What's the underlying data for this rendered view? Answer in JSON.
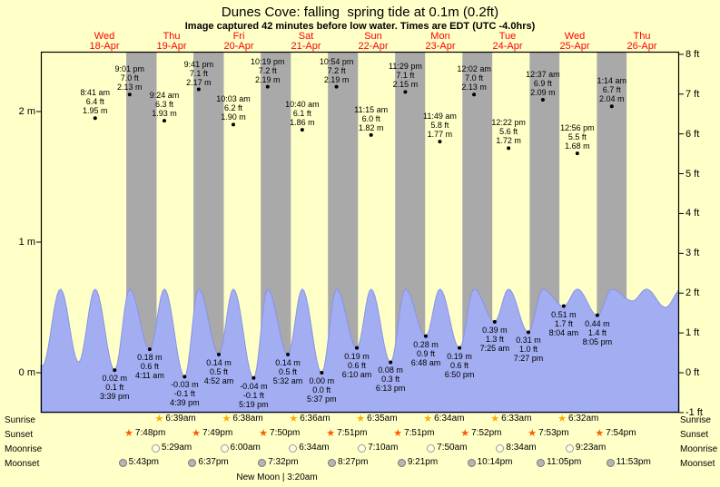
{
  "header": {
    "title": "Dunes Cove: falling  spring tide at 0.1m (0.2ft)",
    "subtitle": "Image captured 42 minutes before low water. Times are EDT (UTC -4.0hrs)"
  },
  "colors": {
    "background": "#ffffc8",
    "night_band": "#a9a9a9",
    "tide_fill": "#a3adf2",
    "tide_stroke": "#8793e8",
    "day_label": "#ff0000",
    "sunrise_star": "#ffaa00",
    "sunset_star": "#ff5a00",
    "moonrise_fill": "#ffffe2",
    "moonset_fill": "#b5b5b5"
  },
  "chart_data": {
    "type": "area",
    "description": "Tide height curve with day/night shading; high tides annotated above curve, low tides below",
    "y_axis_left": {
      "unit": "m",
      "labels": [
        "2 m",
        "1 m",
        "0 m"
      ],
      "values": [
        2,
        1,
        0
      ]
    },
    "y_axis_right": {
      "unit": "ft",
      "labels": [
        "8 ft",
        "7 ft",
        "6 ft",
        "5 ft",
        "4 ft",
        "3 ft",
        "2 ft",
        "1 ft",
        "0 ft",
        "-1 ft"
      ],
      "values": [
        8,
        7,
        6,
        5,
        4,
        3,
        2,
        1,
        0,
        -1
      ]
    },
    "days": [
      {
        "day": 18,
        "dow": "Wed",
        "date": "18-Apr"
      },
      {
        "day": 19,
        "dow": "Thu",
        "date": "19-Apr"
      },
      {
        "day": 20,
        "dow": "Fri",
        "date": "20-Apr"
      },
      {
        "day": 21,
        "dow": "Sat",
        "date": "21-Apr"
      },
      {
        "day": 22,
        "dow": "Sun",
        "date": "22-Apr"
      },
      {
        "day": 23,
        "dow": "Mon",
        "date": "23-Apr"
      },
      {
        "day": 24,
        "dow": "Tue",
        "date": "24-Apr"
      },
      {
        "day": 25,
        "dow": "Wed",
        "date": "25-Apr"
      },
      {
        "day": 26,
        "dow": "Thu",
        "date": "26-Apr"
      }
    ],
    "high_tides": [
      {
        "day": 18,
        "time": "8:41 am",
        "ft": "6.4 ft",
        "m": "1.95 m"
      },
      {
        "day": 18,
        "time": "9:01 pm",
        "ft": "7.0 ft",
        "m": "2.13 m"
      },
      {
        "day": 19,
        "time": "9:24 am",
        "ft": "6.3 ft",
        "m": "1.93 m"
      },
      {
        "day": 19,
        "time": "9:41 pm",
        "ft": "7.1 ft",
        "m": "2.17 m"
      },
      {
        "day": 20,
        "time": "10:03 am",
        "ft": "6.2 ft",
        "m": "1.90 m"
      },
      {
        "day": 20,
        "time": "10:19 pm",
        "ft": "7.2 ft",
        "m": "2.19 m"
      },
      {
        "day": 21,
        "time": "10:40 am",
        "ft": "6.1 ft",
        "m": "1.86 m"
      },
      {
        "day": 21,
        "time": "10:54 pm",
        "ft": "7.2 ft",
        "m": "2.19 m"
      },
      {
        "day": 22,
        "time": "11:15 am",
        "ft": "6.0 ft",
        "m": "1.82 m"
      },
      {
        "day": 22,
        "time": "11:29 pm",
        "ft": "7.1 ft",
        "m": "2.15 m"
      },
      {
        "day": 23,
        "time": "11:49 am",
        "ft": "5.8 ft",
        "m": "1.77 m"
      },
      {
        "day": 24,
        "time": "12:02 am",
        "ft": "7.0 ft",
        "m": "2.13 m"
      },
      {
        "day": 24,
        "time": "12:22 pm",
        "ft": "5.6 ft",
        "m": "1.72 m"
      },
      {
        "day": 25,
        "time": "12:37 am",
        "ft": "6.9 ft",
        "m": "2.09 m"
      },
      {
        "day": 25,
        "time": "12:56 pm",
        "ft": "5.5 ft",
        "m": "1.68 m"
      },
      {
        "day": 26,
        "time": "1:14 am",
        "ft": "6.7 ft",
        "m": "2.04 m"
      }
    ],
    "low_tides": [
      {
        "day": 18,
        "time": "3:39 pm",
        "m": "0.02 m",
        "ft": "0.1 ft"
      },
      {
        "day": 19,
        "time": "4:11 am",
        "m": "0.18 m",
        "ft": "0.6 ft"
      },
      {
        "day": 19,
        "time": "4:39 pm",
        "m": "-0.03 m",
        "ft": "-0.1 ft"
      },
      {
        "day": 20,
        "time": "4:52 am",
        "m": "0.14 m",
        "ft": "0.5 ft"
      },
      {
        "day": 20,
        "time": "5:19 pm",
        "m": "-0.04 m",
        "ft": "-0.1 ft"
      },
      {
        "day": 21,
        "time": "5:32 am",
        "m": "0.14 m",
        "ft": "0.5 ft"
      },
      {
        "day": 21,
        "time": "5:37 pm",
        "m": "0.00 m",
        "ft": "0.0 ft"
      },
      {
        "day": 22,
        "time": "6:10 am",
        "m": "0.19 m",
        "ft": "0.6 ft"
      },
      {
        "day": 22,
        "time": "6:13 pm",
        "m": "0.08 m",
        "ft": "0.3 ft"
      },
      {
        "day": 23,
        "time": "6:48 am",
        "m": "0.28 m",
        "ft": "0.9 ft"
      },
      {
        "day": 23,
        "time": "6:50 pm",
        "m": "0.19 m",
        "ft": "0.6 ft"
      },
      {
        "day": 24,
        "time": "7:25 am",
        "m": "0.39 m",
        "ft": "1.3 ft"
      },
      {
        "day": 24,
        "time": "7:27 pm",
        "m": "0.31 m",
        "ft": "1.0 ft"
      },
      {
        "day": 25,
        "time": "8:04 am",
        "m": "0.51 m",
        "ft": "1.7 ft"
      },
      {
        "day": 25,
        "time": "8:05 pm",
        "m": "0.44 m",
        "ft": "1.4 ft"
      }
    ]
  },
  "almanac": {
    "rows": [
      {
        "label": "Sunrise",
        "icon": "sunrise-star",
        "entries": [
          {
            "day": 19,
            "time": "6:39am"
          },
          {
            "day": 20,
            "time": "6:38am"
          },
          {
            "day": 21,
            "time": "6:36am"
          },
          {
            "day": 22,
            "time": "6:35am"
          },
          {
            "day": 23,
            "time": "6:34am"
          },
          {
            "day": 24,
            "time": "6:33am"
          },
          {
            "day": 25,
            "time": "6:32am"
          }
        ]
      },
      {
        "label": "Sunset",
        "icon": "sunset-star",
        "entries": [
          {
            "day": 18,
            "time": "7:48pm"
          },
          {
            "day": 19,
            "time": "7:49pm"
          },
          {
            "day": 20,
            "time": "7:50pm"
          },
          {
            "day": 21,
            "time": "7:51pm"
          },
          {
            "day": 22,
            "time": "7:51pm"
          },
          {
            "day": 23,
            "time": "7:52pm"
          },
          {
            "day": 24,
            "time": "7:53pm"
          },
          {
            "day": 25,
            "time": "7:54pm"
          }
        ]
      },
      {
        "label": "Moonrise",
        "icon": "moonrise-circle",
        "entries": [
          {
            "day": 19,
            "time": "5:29am"
          },
          {
            "day": 20,
            "time": "6:00am"
          },
          {
            "day": 21,
            "time": "6:34am"
          },
          {
            "day": 22,
            "time": "7:10am"
          },
          {
            "day": 23,
            "time": "7:50am"
          },
          {
            "day": 24,
            "time": "8:34am"
          },
          {
            "day": 25,
            "time": "9:23am"
          }
        ]
      },
      {
        "label": "Moonset",
        "icon": "moonset-circle",
        "entries": [
          {
            "day": 18,
            "time": "5:43pm"
          },
          {
            "day": 19,
            "time": "6:37pm"
          },
          {
            "day": 20,
            "time": "7:32pm"
          },
          {
            "day": 21,
            "time": "8:27pm"
          },
          {
            "day": 22,
            "time": "9:21pm"
          },
          {
            "day": 23,
            "time": "10:14pm"
          },
          {
            "day": 24,
            "time": "11:05pm"
          },
          {
            "day": 25,
            "time": "11:53pm"
          }
        ]
      }
    ],
    "moon_phase": "New Moon | 3:20am"
  }
}
